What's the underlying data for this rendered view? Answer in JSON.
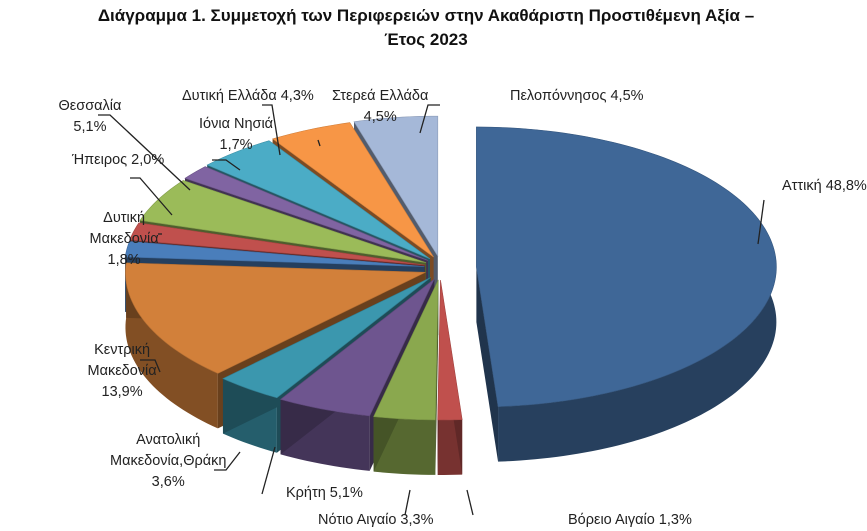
{
  "chart_data": {
    "type": "pie",
    "style": "3d-exploded",
    "title": "Διάγραμμα 1. Συμμετοχή των Περιφερειών στην Ακαθάριστη Προστιθέμενη Αξία – Έτος 2023",
    "title_lines": [
      "Διάγραμμα 1. Συμμετοχή των Περιφερειών στην Ακαθάριστη Προστιθέμενη Αξία –",
      "Έτος 2023"
    ],
    "legend": "none",
    "slices": [
      {
        "name": "Αττική",
        "value": 48.8,
        "label": "Αττική 48,8%",
        "color": "#3f6797"
      },
      {
        "name": "Βόρειο Αιγαίο",
        "value": 1.3,
        "label": "Βόρειο Αιγαίο 1,3%",
        "color": "#c0504d"
      },
      {
        "name": "Νότιο Αιγαίο",
        "value": 3.3,
        "label": "Νότιο Αιγαίο 3,3%",
        "color": "#8aa84e"
      },
      {
        "name": "Κρήτη",
        "value": 5.1,
        "label": "Κρήτη 5,1%",
        "color": "#6e558f"
      },
      {
        "name": "Ανατολική Μακεδονία,Θράκη",
        "value": 3.6,
        "label": "Ανατολική\nΜακεδονία,Θράκη\n3,6%",
        "color": "#3b97ae"
      },
      {
        "name": "Κεντρική Μακεδονία",
        "value": 13.9,
        "label": "Κεντρική\nΜακεδονία\n13,9%",
        "color": "#d2803a"
      },
      {
        "name": "Δυτική Μακεδονία",
        "value": 1.8,
        "label": "Δυτική\nΜακεδονία\n1,8%",
        "color": "#4a7ebb"
      },
      {
        "name": "Ήπειρος",
        "value": 2.0,
        "label": "Ήπειρος 2,0%",
        "color": "#c0504d"
      },
      {
        "name": "Θεσσαλία",
        "value": 5.1,
        "label": "Θεσσαλία\n5,1%",
        "color": "#9bbb59"
      },
      {
        "name": "Ιόνια Νησιά",
        "value": 1.7,
        "label": "Ιόνια Νησιά\n1,7%",
        "color": "#8064a2"
      },
      {
        "name": "Δυτική Ελλάδα",
        "value": 4.3,
        "label": "Δυτική Ελλάδα 4,3%",
        "color": "#4bacc6"
      },
      {
        "name": "Στερεά Ελλάδα",
        "value": 4.5,
        "label": "Στερεά Ελλάδα\n4,5%",
        "color": "#f79646"
      },
      {
        "name": "Πελοπόννησος",
        "value": 4.5,
        "label": "Πελοπόννησος 4,5%",
        "color": "#a5b8d8"
      }
    ]
  }
}
